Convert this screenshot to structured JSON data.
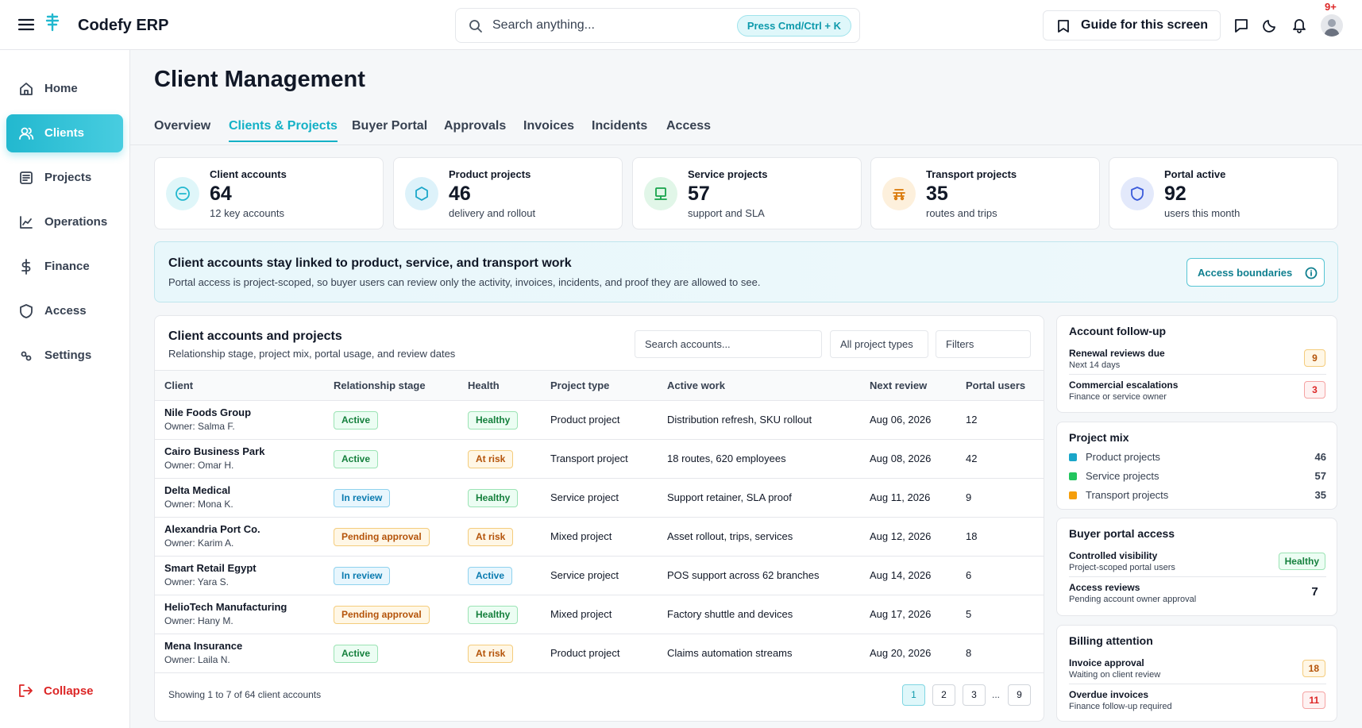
{
  "app": {
    "title": "Codefy ERP"
  },
  "search": {
    "placeholder": "Search anything...",
    "shortcut": "Press Cmd/Ctrl + K"
  },
  "header": {
    "guide_label": "Guide for this screen",
    "notifications_count": "9+"
  },
  "sidebar": {
    "items": [
      {
        "label": "Home",
        "icon": "home-icon"
      },
      {
        "label": "Clients",
        "icon": "users-icon",
        "active": true
      },
      {
        "label": "Projects",
        "icon": "document-icon"
      },
      {
        "label": "Operations",
        "icon": "chart-icon"
      },
      {
        "label": "Finance",
        "icon": "dollar-icon"
      },
      {
        "label": "Access",
        "icon": "shield-icon"
      },
      {
        "label": "Settings",
        "icon": "settings-icon"
      }
    ],
    "collapse_label": "Collapse"
  },
  "page": {
    "title": "Client Management"
  },
  "tabs": [
    "Overview",
    "Clients & Projects",
    "Buyer Portal",
    "Approvals",
    "Invoices",
    "Incidents",
    "Access"
  ],
  "active_tab": "Clients & Projects",
  "kpis": [
    {
      "title": "Client accounts",
      "value": "64",
      "sub": "12 key accounts",
      "icon": "minus-circle-icon",
      "color": "#22b8cf"
    },
    {
      "title": "Product projects",
      "value": "46",
      "sub": "delivery and rollout",
      "icon": "hexagon-icon",
      "color": "#1aa6c9"
    },
    {
      "title": "Service projects",
      "value": "57",
      "sub": "support and SLA",
      "icon": "monitor-icon",
      "color": "#16a34a"
    },
    {
      "title": "Transport projects",
      "value": "35",
      "sub": "routes and trips",
      "icon": "bus-icon",
      "color": "#d97706"
    },
    {
      "title": "Portal active",
      "value": "92",
      "sub": "users this month",
      "icon": "shield-icon",
      "color": "#3b5bdb"
    }
  ],
  "banner": {
    "title": "Client accounts stay linked to product, service, and transport work",
    "text": "Portal access is project-scoped, so buyer users can review only the activity, invoices, incidents, and proof they are allowed to see.",
    "button_label": "Access boundaries"
  },
  "table": {
    "title": "Client accounts and projects",
    "subtitle": "Relationship stage, project mix, portal usage, and review dates",
    "search_placeholder": "Search accounts...",
    "type_filter": "All project types",
    "filters_label": "Filters",
    "columns": [
      "Client",
      "Relationship stage",
      "Health",
      "Project type",
      "Active work",
      "Next review",
      "Portal users"
    ],
    "rows": [
      {
        "client": "Nile Foods Group",
        "owner": "Owner: Salma F.",
        "stage": "Active",
        "health": "Healthy",
        "type": "Product project",
        "work": "Distribution refresh, SKU rollout",
        "review": "Aug 06, 2026",
        "users": "12"
      },
      {
        "client": "Cairo Business Park",
        "owner": "Owner: Omar H.",
        "stage": "Active",
        "health": "At risk",
        "type": "Transport project",
        "work": "18 routes, 620 employees",
        "review": "Aug 08, 2026",
        "users": "42"
      },
      {
        "client": "Delta Medical",
        "owner": "Owner: Mona K.",
        "stage": "In review",
        "health": "Healthy",
        "type": "Service project",
        "work": "Support retainer, SLA proof",
        "review": "Aug 11, 2026",
        "users": "9"
      },
      {
        "client": "Alexandria Port Co.",
        "owner": "Owner: Karim A.",
        "stage": "Pending approval",
        "health": "At risk",
        "type": "Mixed project",
        "work": "Asset rollout, trips, services",
        "review": "Aug 12, 2026",
        "users": "18"
      },
      {
        "client": "Smart Retail Egypt",
        "owner": "Owner: Yara S.",
        "stage": "In review",
        "health": "Active",
        "type": "Service project",
        "work": "POS support across 62 branches",
        "review": "Aug 14, 2026",
        "users": "6"
      },
      {
        "client": "HelioTech Manufacturing",
        "owner": "Owner: Hany M.",
        "stage": "Pending approval",
        "health": "Healthy",
        "type": "Mixed project",
        "work": "Factory shuttle and devices",
        "review": "Aug 17, 2026",
        "users": "5"
      },
      {
        "client": "Mena Insurance",
        "owner": "Owner: Laila N.",
        "stage": "Active",
        "health": "At risk",
        "type": "Product project",
        "work": "Claims automation streams",
        "review": "Aug 20, 2026",
        "users": "8"
      }
    ],
    "showing": "Showing 1 to 7 of 64 client accounts",
    "pages": [
      "1",
      "2",
      "3",
      "9"
    ],
    "ellipsis": "...",
    "current_page": "1"
  },
  "follow_up": {
    "title": "Account follow-up",
    "items": [
      {
        "title": "Renewal reviews due",
        "sub": "Next 14 days",
        "count": "9",
        "tone": "yellow"
      },
      {
        "title": "Commercial escalations",
        "sub": "Finance or service owner",
        "count": "3",
        "tone": "red"
      }
    ]
  },
  "project_mix": {
    "title": "Project mix",
    "items": [
      {
        "label": "Product projects",
        "value": "46",
        "color": "#1aa6c9"
      },
      {
        "label": "Service projects",
        "value": "57",
        "color": "#22c55e"
      },
      {
        "label": "Transport projects",
        "value": "35",
        "color": "#f59e0b"
      }
    ]
  },
  "portal_access": {
    "title": "Buyer portal access",
    "items": [
      {
        "title": "Controlled visibility",
        "sub": "Project-scoped portal users",
        "value": "Healthy"
      },
      {
        "title": "Access reviews",
        "sub": "Pending account owner approval",
        "value": "7"
      }
    ]
  },
  "billing": {
    "title": "Billing attention",
    "items": [
      {
        "title": "Invoice approval",
        "sub": "Waiting on client review",
        "count": "18",
        "tone": "yellow"
      },
      {
        "title": "Overdue invoices",
        "sub": "Finance follow-up required",
        "count": "11",
        "tone": "red"
      }
    ]
  },
  "colors": {
    "accent": "#22b8cf",
    "danger": "#dc2626"
  }
}
